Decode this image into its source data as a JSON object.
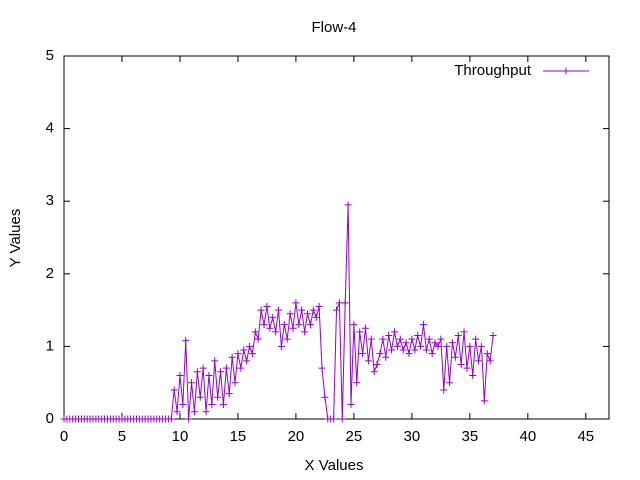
{
  "chart_data": {
    "type": "line",
    "title": "Flow-4",
    "x_label": "X Values",
    "y_label": "Y Values",
    "xlim": [
      0,
      47
    ],
    "ylim": [
      0,
      5
    ],
    "xticks": [
      0,
      5,
      10,
      15,
      20,
      25,
      30,
      35,
      40,
      45
    ],
    "yticks": [
      0,
      1,
      2,
      3,
      4,
      5
    ],
    "legend": "top-right",
    "x": [
      0,
      0.25,
      0.5,
      0.75,
      1,
      1.25,
      1.5,
      1.75,
      2,
      2.25,
      2.5,
      2.75,
      3,
      3.25,
      3.5,
      3.75,
      4,
      4.25,
      4.5,
      4.75,
      5,
      5.25,
      5.5,
      5.75,
      6,
      6.25,
      6.5,
      6.75,
      7,
      7.25,
      7.5,
      7.75,
      8,
      8.25,
      8.5,
      8.75,
      9,
      9.25,
      9.5,
      9.75,
      10,
      10.25,
      10.5,
      10.75,
      11,
      11.25,
      11.5,
      11.75,
      12,
      12.25,
      12.5,
      12.75,
      13,
      13.25,
      13.5,
      13.75,
      14,
      14.25,
      14.5,
      14.75,
      15,
      15.25,
      15.5,
      15.75,
      16,
      16.25,
      16.5,
      16.75,
      17,
      17.25,
      17.5,
      17.75,
      18,
      18.25,
      18.5,
      18.75,
      19,
      19.25,
      19.5,
      19.75,
      20,
      20.25,
      20.5,
      20.75,
      21,
      21.25,
      21.5,
      21.75,
      22,
      22.25,
      22.5,
      22.75,
      23,
      23.25,
      23.5,
      23.75,
      24,
      24.25,
      24.5,
      24.75,
      25,
      25.25,
      25.5,
      25.75,
      26,
      26.25,
      26.5,
      26.75,
      27,
      27.25,
      27.5,
      27.75,
      28,
      28.25,
      28.5,
      28.75,
      29,
      29.25,
      29.5,
      29.75,
      30,
      30.25,
      30.5,
      30.75,
      31,
      31.25,
      31.5,
      31.75,
      32,
      32.25,
      32.5,
      32.75,
      33,
      33.25,
      33.5,
      33.75,
      34,
      34.25,
      34.5,
      34.75,
      35,
      35.25,
      35.5,
      35.75,
      36,
      36.25,
      36.5,
      36.75,
      37
    ],
    "series": [
      {
        "name": "Throughput",
        "color": "#9400d3",
        "values": [
          0,
          0,
          0,
          0,
          0,
          0,
          0,
          0,
          0,
          0,
          0,
          0,
          0,
          0,
          0,
          0,
          0,
          0,
          0,
          0,
          0,
          0,
          0,
          0,
          0,
          0,
          0,
          0,
          0,
          0,
          0,
          0,
          0,
          0,
          0,
          0,
          0,
          0,
          0.4,
          0.1,
          0.6,
          0.2,
          1.08,
          0,
          0.5,
          0.1,
          0.65,
          0.3,
          0.7,
          0.1,
          0.6,
          0.2,
          0.8,
          0.3,
          0.65,
          0.2,
          0.7,
          0.35,
          0.85,
          0.5,
          0.9,
          0.7,
          0.95,
          0.8,
          1.0,
          0.9,
          1.2,
          1.1,
          1.5,
          1.3,
          1.55,
          1.25,
          1.4,
          1.2,
          1.5,
          1.0,
          1.3,
          1.1,
          1.45,
          1.25,
          1.6,
          1.3,
          1.5,
          1.2,
          1.45,
          1.3,
          1.5,
          1.4,
          1.55,
          0.7,
          0.3,
          0,
          0,
          0,
          1.5,
          1.6,
          0,
          1.6,
          2.95,
          0.2,
          1.3,
          0.5,
          1.2,
          0.9,
          1.25,
          0.8,
          1.1,
          0.65,
          0.75,
          0.9,
          1.1,
          0.85,
          1.15,
          0.95,
          1.2,
          1.0,
          1.1,
          0.95,
          1.05,
          0.9,
          1.1,
          0.95,
          1.15,
          1.0,
          1.3,
          0.95,
          1.1,
          0.9,
          1.05,
          1.0,
          1.1,
          0.4,
          1.0,
          0.5,
          1.05,
          0.85,
          1.15,
          0.75,
          1.2,
          0.7,
          1.0,
          0.6,
          1.1,
          0.8,
          1.0,
          0.25,
          0.9,
          0.8,
          1.15
        ]
      }
    ]
  }
}
